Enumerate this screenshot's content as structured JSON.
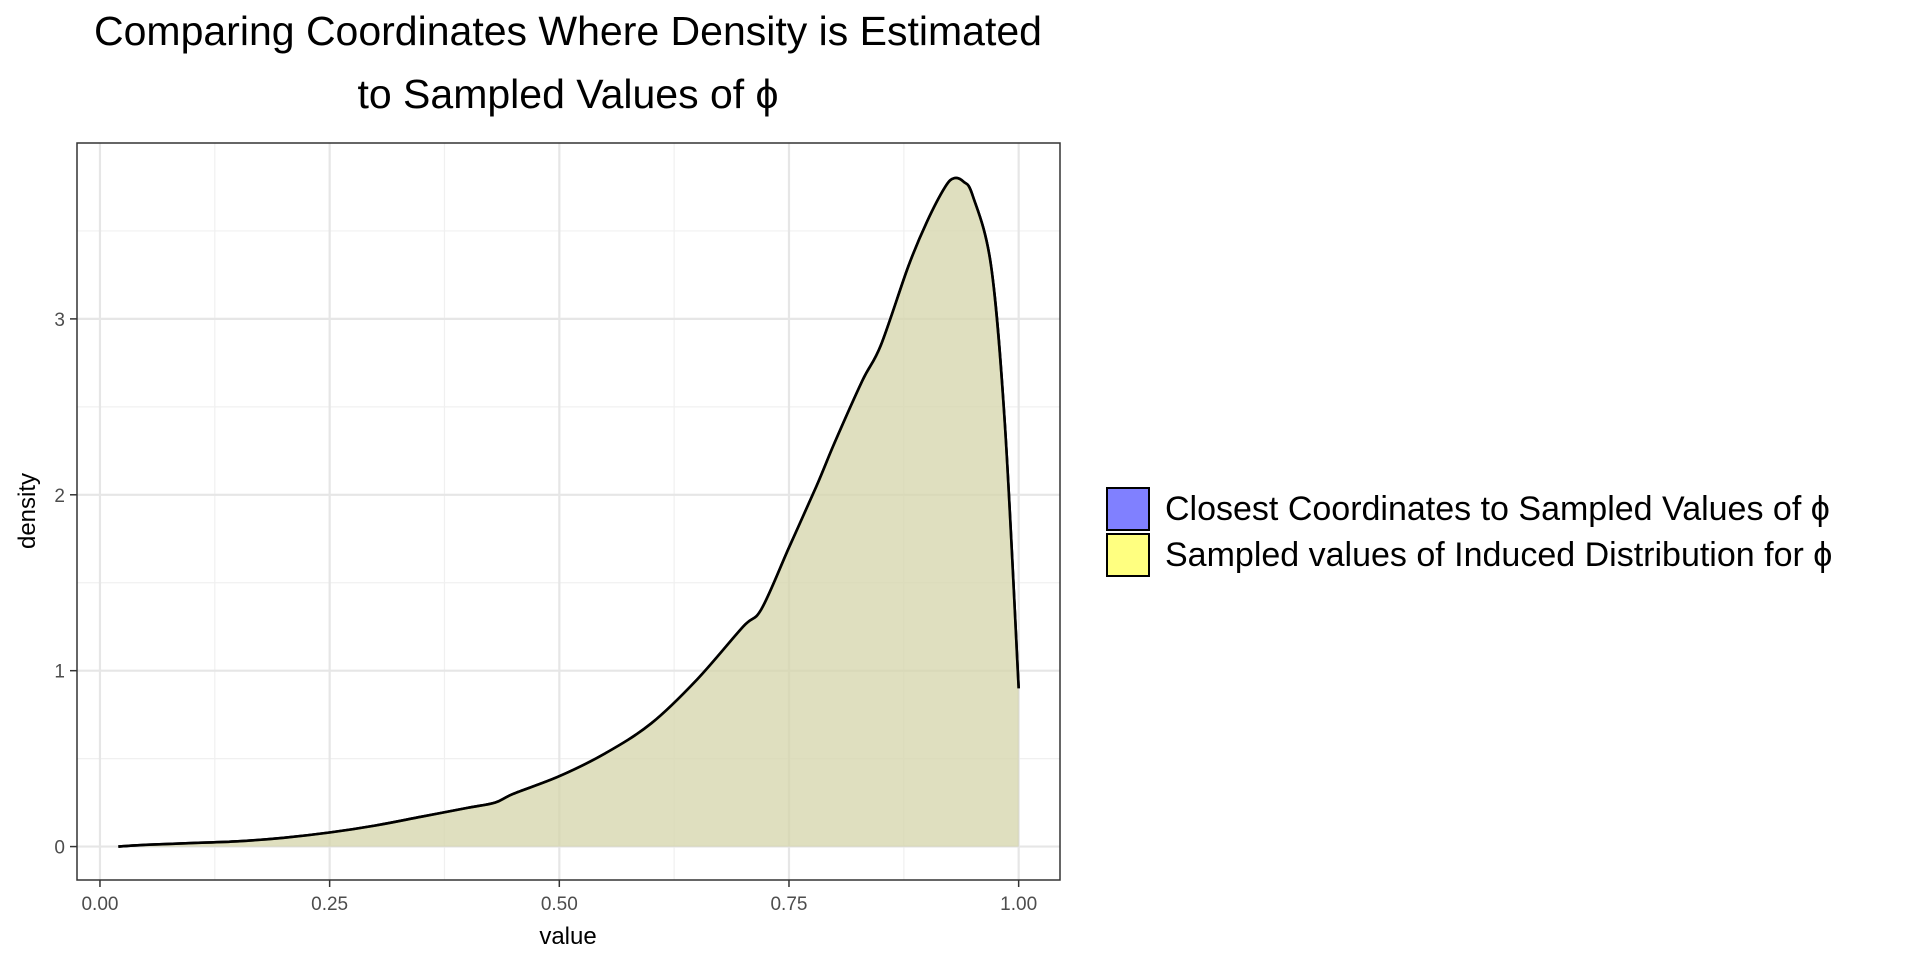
{
  "chart_data": {
    "type": "area",
    "title_lines": [
      "Comparing Coordinates Where Density is Estimated",
      "to Sampled Values of ϕ"
    ],
    "xlabel": "value",
    "ylabel": "density",
    "xlim": [
      -0.025,
      1.045
    ],
    "ylim": [
      -0.19,
      4.0
    ],
    "x_ticks": [
      0.0,
      0.25,
      0.5,
      0.75,
      1.0
    ],
    "x_tick_labels": [
      "0.00",
      "0.25",
      "0.50",
      "0.75",
      "1.00"
    ],
    "y_ticks": [
      0,
      1,
      2,
      3
    ],
    "y_tick_labels": [
      "0",
      "1",
      "2",
      "3"
    ],
    "grid": true,
    "legend_position": "right",
    "series": [
      {
        "name": "Closest Coordinates to Sampled Values of ϕ",
        "fill_color": "#8080ff",
        "x": [
          0.02,
          0.05,
          0.1,
          0.15,
          0.2,
          0.25,
          0.3,
          0.35,
          0.4,
          0.43,
          0.45,
          0.5,
          0.55,
          0.6,
          0.65,
          0.7,
          0.72,
          0.75,
          0.78,
          0.8,
          0.83,
          0.85,
          0.88,
          0.9,
          0.92,
          0.93,
          0.94,
          0.95,
          0.97,
          0.985,
          1.0
        ],
        "y": [
          0.0,
          0.01,
          0.02,
          0.03,
          0.05,
          0.08,
          0.12,
          0.17,
          0.22,
          0.25,
          0.3,
          0.4,
          0.53,
          0.7,
          0.95,
          1.25,
          1.35,
          1.7,
          2.05,
          2.3,
          2.65,
          2.85,
          3.3,
          3.55,
          3.75,
          3.8,
          3.78,
          3.7,
          3.3,
          2.4,
          0.9
        ]
      },
      {
        "name": "Sampled values of Induced Distribution for ϕ",
        "fill_color": "#ffff80",
        "x": [
          0.02,
          0.05,
          0.1,
          0.15,
          0.2,
          0.25,
          0.3,
          0.35,
          0.4,
          0.43,
          0.45,
          0.5,
          0.55,
          0.6,
          0.65,
          0.7,
          0.72,
          0.75,
          0.78,
          0.8,
          0.83,
          0.85,
          0.88,
          0.9,
          0.92,
          0.93,
          0.94,
          0.95,
          0.97,
          0.985,
          1.0
        ],
        "y": [
          0.0,
          0.01,
          0.02,
          0.03,
          0.05,
          0.08,
          0.12,
          0.17,
          0.22,
          0.25,
          0.3,
          0.4,
          0.53,
          0.7,
          0.95,
          1.25,
          1.35,
          1.7,
          2.05,
          2.3,
          2.65,
          2.85,
          3.3,
          3.55,
          3.75,
          3.8,
          3.78,
          3.7,
          3.3,
          2.4,
          0.9
        ]
      }
    ]
  }
}
